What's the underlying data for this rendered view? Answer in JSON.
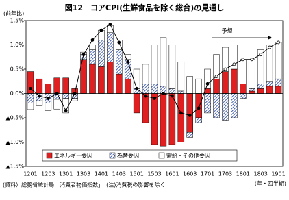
{
  "chart_data": {
    "type": "bar",
    "stacked": true,
    "title": "図12　コアCPI(生鮮食品を除く総合)の見通し",
    "y_label": "(前年比)",
    "x_label": "(年・四半期)",
    "source": "(資料）総務省統計局「消費者物価指数」　(注)消費税の影響を除く",
    "categories": [
      "1201",
      null,
      "1203",
      null,
      "1301",
      null,
      "1303",
      null,
      "1401",
      null,
      "1403",
      null,
      "1501",
      null,
      "1503",
      null,
      "1601",
      null,
      "1603",
      null,
      "1701",
      null,
      "1703",
      null,
      "1801",
      null,
      "1803",
      null,
      "1901"
    ],
    "series": [
      {
        "name": "エネルギー要因",
        "color": "#e02020",
        "values": [
          0.45,
          0.3,
          0.2,
          0.32,
          0.32,
          0.1,
          0.7,
          0.6,
          0.55,
          0.65,
          0.4,
          0.3,
          -0.4,
          -0.6,
          -1.05,
          -1.08,
          -1.05,
          -1.0,
          -0.8,
          -0.5,
          0.1,
          0.3,
          0.45,
          0.5,
          0.2,
          0.05,
          0.1,
          0.15,
          0.15
        ]
      },
      {
        "name": "為替要因",
        "color": "#2040a0",
        "hatched": true,
        "values": [
          -0.2,
          -0.15,
          -0.2,
          -0.12,
          -0.1,
          -0.1,
          0.1,
          0.3,
          0.55,
          0.6,
          0.5,
          0.4,
          0.1,
          0.2,
          0.2,
          0.15,
          0.1,
          0.05,
          -0.1,
          -0.1,
          -0.4,
          -0.5,
          -0.55,
          -0.5,
          -0.1,
          0.05,
          0.1,
          0.1,
          0.15
        ]
      },
      {
        "name": "需給・その他要因",
        "color": "#ffffff",
        "values": [
          -0.13,
          -0.1,
          -0.15,
          -0.2,
          -0.3,
          -0.05,
          0.05,
          0.1,
          0.2,
          0.15,
          0.2,
          0.1,
          0.4,
          0.4,
          0.8,
          1.0,
          0.9,
          0.6,
          0.35,
          0.3,
          0.4,
          0.5,
          0.5,
          0.5,
          0.5,
          0.6,
          0.7,
          0.75,
          0.75
        ]
      }
    ],
    "line": {
      "color": "#000000",
      "values": [
        0.1,
        -0.05,
        -0.1,
        0.0,
        -0.35,
        0.0,
        0.8,
        1.1,
        1.3,
        1.42,
        1.05,
        0.65,
        0.1,
        -0.05,
        -0.1,
        0.0,
        -0.05,
        -0.4,
        -0.45,
        -0.3,
        0.2,
        0.35,
        0.5,
        0.6,
        0.7,
        0.7,
        0.8,
        0.95,
        1.05
      ]
    },
    "forecast": {
      "label": "予想",
      "start_index": 21
    },
    "ylim": [
      -1.5,
      1.5
    ],
    "yticks": [
      {
        "value": 1.5,
        "label": "1.5%"
      },
      {
        "value": 1.0,
        "label": "1.0%"
      },
      {
        "value": 0.5,
        "label": "0.5%"
      },
      {
        "value": 0.0,
        "label": "0.0%"
      },
      {
        "value": -0.5,
        "label": "▲0.5%"
      },
      {
        "value": -1.0,
        "label": "▲1.0%"
      },
      {
        "value": -1.5,
        "label": "▲1.5%"
      }
    ],
    "legend": "bottom"
  }
}
